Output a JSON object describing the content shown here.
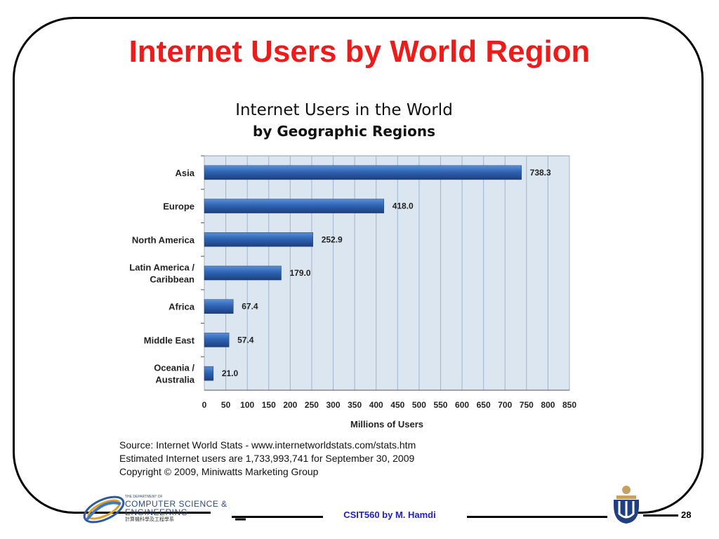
{
  "slide": {
    "title": "Internet Users by World Region",
    "footer": "CSIT560 by M. Hamdi",
    "page_number": "28",
    "dept_logo": {
      "line1": "THE DEPARTMENT OF",
      "line2": "COMPUTER SCIENCE &",
      "line3": "ENGINEERING",
      "line4": "計算機科學及工程學系"
    },
    "source_lines": [
      "Source: Internet World Stats - www.internetworldstats.com/stats.htm",
      "Estimated Internet users are 1,733,993,741 for September 30, 2009",
      "Copyright © 2009, Miniwatts Marketing Group"
    ]
  },
  "chart_data": {
    "type": "bar",
    "orientation": "horizontal",
    "title": "Internet Users in the World",
    "subtitle": "by Geographic Regions",
    "categories": [
      "Asia",
      "Europe",
      "North America",
      "Latin America / Caribbean",
      "Africa",
      "Middle East",
      "Oceania / Australia"
    ],
    "category_lines": [
      [
        "Asia"
      ],
      [
        "Europe"
      ],
      [
        "North America"
      ],
      [
        "Latin America /",
        "Caribbean"
      ],
      [
        "Africa"
      ],
      [
        "Middle East"
      ],
      [
        "Oceania /",
        "Australia"
      ]
    ],
    "values": [
      738.3,
      418.0,
      252.9,
      179.0,
      67.4,
      57.4,
      21.0
    ],
    "value_labels": [
      "738.3",
      "418.0",
      "252.9",
      "179.0",
      "67.4",
      "57.4",
      "21.0"
    ],
    "xlabel": "Millions of Users",
    "ylabel": "",
    "xlim": [
      0,
      850
    ],
    "xticks": [
      0,
      50,
      100,
      150,
      200,
      250,
      300,
      350,
      400,
      450,
      500,
      550,
      600,
      650,
      700,
      750,
      800,
      850
    ],
    "grid": "vertical",
    "bar_color": "#2f64b4",
    "plot_background": "#dce6f1"
  }
}
